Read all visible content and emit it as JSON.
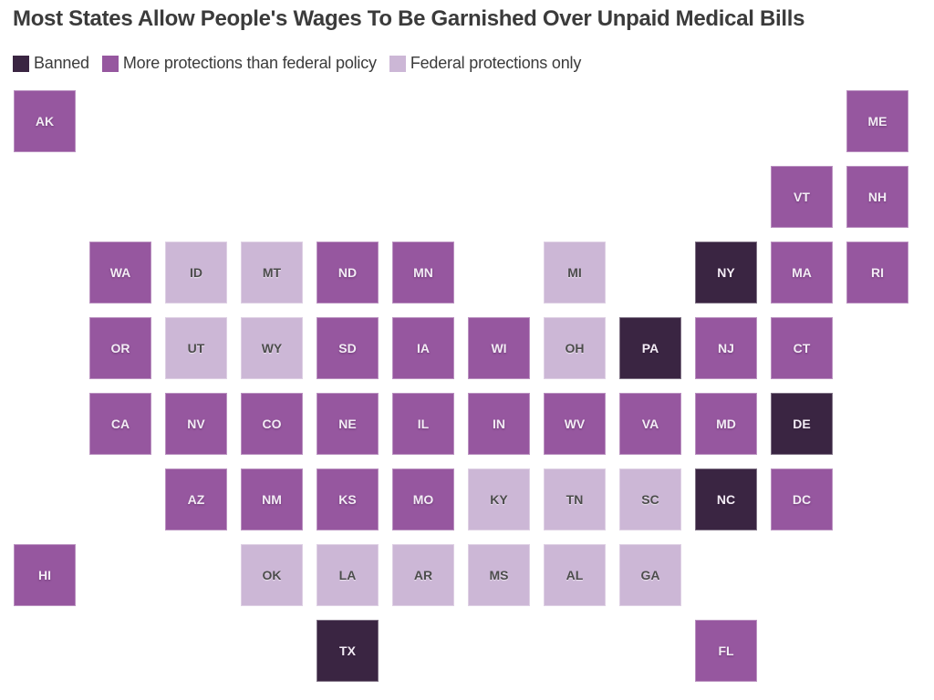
{
  "title": "Most States Allow People's Wages To Be Garnished Over Unpaid Medical Bills",
  "colors": {
    "banned": "#3a2542",
    "more": "#96579f",
    "federal": "#ccb7d6",
    "title_text": "#3b3b3b",
    "label_on_dark": "#f3ecf5",
    "label_on_light": "#4c4c4c"
  },
  "legend": [
    {
      "key": "banned",
      "label": "Banned",
      "color": "#3a2542"
    },
    {
      "key": "more",
      "label": "More protections than federal policy",
      "color": "#96579f"
    },
    {
      "key": "federal",
      "label": "Federal protections only",
      "color": "#ccb7d6"
    }
  ],
  "chart_data": {
    "type": "heatmap",
    "subtype": "us-state-tile-grid-map",
    "title": "Most States Allow People's Wages To Be Garnished Over Unpaid Medical Bills",
    "grid": {
      "columns": 12,
      "rows": 8
    },
    "categories": {
      "banned": "Banned",
      "more": "More protections than federal policy",
      "federal": "Federal protections only"
    },
    "states": [
      {
        "abbr": "AK",
        "col": 1,
        "row": 1,
        "category": "more"
      },
      {
        "abbr": "ME",
        "col": 12,
        "row": 1,
        "category": "more"
      },
      {
        "abbr": "VT",
        "col": 11,
        "row": 2,
        "category": "more"
      },
      {
        "abbr": "NH",
        "col": 12,
        "row": 2,
        "category": "more"
      },
      {
        "abbr": "WA",
        "col": 2,
        "row": 3,
        "category": "more"
      },
      {
        "abbr": "ID",
        "col": 3,
        "row": 3,
        "category": "federal"
      },
      {
        "abbr": "MT",
        "col": 4,
        "row": 3,
        "category": "federal"
      },
      {
        "abbr": "ND",
        "col": 5,
        "row": 3,
        "category": "more"
      },
      {
        "abbr": "MN",
        "col": 6,
        "row": 3,
        "category": "more"
      },
      {
        "abbr": "MI",
        "col": 8,
        "row": 3,
        "category": "federal"
      },
      {
        "abbr": "NY",
        "col": 10,
        "row": 3,
        "category": "banned"
      },
      {
        "abbr": "MA",
        "col": 11,
        "row": 3,
        "category": "more"
      },
      {
        "abbr": "RI",
        "col": 12,
        "row": 3,
        "category": "more"
      },
      {
        "abbr": "OR",
        "col": 2,
        "row": 4,
        "category": "more"
      },
      {
        "abbr": "UT",
        "col": 3,
        "row": 4,
        "category": "federal"
      },
      {
        "abbr": "WY",
        "col": 4,
        "row": 4,
        "category": "federal"
      },
      {
        "abbr": "SD",
        "col": 5,
        "row": 4,
        "category": "more"
      },
      {
        "abbr": "IA",
        "col": 6,
        "row": 4,
        "category": "more"
      },
      {
        "abbr": "WI",
        "col": 7,
        "row": 4,
        "category": "more"
      },
      {
        "abbr": "OH",
        "col": 8,
        "row": 4,
        "category": "federal"
      },
      {
        "abbr": "PA",
        "col": 9,
        "row": 4,
        "category": "banned"
      },
      {
        "abbr": "NJ",
        "col": 10,
        "row": 4,
        "category": "more"
      },
      {
        "abbr": "CT",
        "col": 11,
        "row": 4,
        "category": "more"
      },
      {
        "abbr": "CA",
        "col": 2,
        "row": 5,
        "category": "more"
      },
      {
        "abbr": "NV",
        "col": 3,
        "row": 5,
        "category": "more"
      },
      {
        "abbr": "CO",
        "col": 4,
        "row": 5,
        "category": "more"
      },
      {
        "abbr": "NE",
        "col": 5,
        "row": 5,
        "category": "more"
      },
      {
        "abbr": "IL",
        "col": 6,
        "row": 5,
        "category": "more"
      },
      {
        "abbr": "IN",
        "col": 7,
        "row": 5,
        "category": "more"
      },
      {
        "abbr": "WV",
        "col": 8,
        "row": 5,
        "category": "more"
      },
      {
        "abbr": "VA",
        "col": 9,
        "row": 5,
        "category": "more"
      },
      {
        "abbr": "MD",
        "col": 10,
        "row": 5,
        "category": "more"
      },
      {
        "abbr": "DE",
        "col": 11,
        "row": 5,
        "category": "banned"
      },
      {
        "abbr": "AZ",
        "col": 3,
        "row": 6,
        "category": "more"
      },
      {
        "abbr": "NM",
        "col": 4,
        "row": 6,
        "category": "more"
      },
      {
        "abbr": "KS",
        "col": 5,
        "row": 6,
        "category": "more"
      },
      {
        "abbr": "MO",
        "col": 6,
        "row": 6,
        "category": "more"
      },
      {
        "abbr": "KY",
        "col": 7,
        "row": 6,
        "category": "federal"
      },
      {
        "abbr": "TN",
        "col": 8,
        "row": 6,
        "category": "federal"
      },
      {
        "abbr": "SC",
        "col": 9,
        "row": 6,
        "category": "federal"
      },
      {
        "abbr": "NC",
        "col": 10,
        "row": 6,
        "category": "banned"
      },
      {
        "abbr": "DC",
        "col": 11,
        "row": 6,
        "category": "more"
      },
      {
        "abbr": "HI",
        "col": 1,
        "row": 7,
        "category": "more"
      },
      {
        "abbr": "OK",
        "col": 4,
        "row": 7,
        "category": "federal"
      },
      {
        "abbr": "LA",
        "col": 5,
        "row": 7,
        "category": "federal"
      },
      {
        "abbr": "AR",
        "col": 6,
        "row": 7,
        "category": "federal"
      },
      {
        "abbr": "MS",
        "col": 7,
        "row": 7,
        "category": "federal"
      },
      {
        "abbr": "AL",
        "col": 8,
        "row": 7,
        "category": "federal"
      },
      {
        "abbr": "GA",
        "col": 9,
        "row": 7,
        "category": "federal"
      },
      {
        "abbr": "TX",
        "col": 5,
        "row": 8,
        "category": "banned"
      },
      {
        "abbr": "FL",
        "col": 10,
        "row": 8,
        "category": "more"
      }
    ]
  }
}
